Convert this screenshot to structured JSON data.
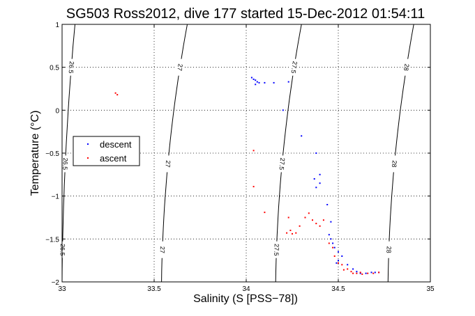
{
  "chart_data": {
    "type": "scatter",
    "title": "SG503 Ross2012, dive 177 started 15-Dec-2012 01:54:11",
    "xlabel": "Salinity (S [PSS−78])",
    "ylabel": "Temperature (°C)",
    "xlim": [
      33,
      35
    ],
    "ylim": [
      -2,
      1
    ],
    "xticks": [
      "33",
      "33.5",
      "34",
      "34.5",
      "35"
    ],
    "yticks": [
      "−2",
      "−1.5",
      "−1",
      "−0.5",
      "0",
      "0.5",
      "1"
    ],
    "grid": true,
    "legend_position": "left",
    "series": [
      {
        "name": "descent",
        "color": "#0000ff",
        "points": [
          [
            34.03,
            0.38
          ],
          [
            34.04,
            0.36
          ],
          [
            34.05,
            0.35
          ],
          [
            34.06,
            0.33
          ],
          [
            34.07,
            0.32
          ],
          [
            34.1,
            0.32
          ],
          [
            34.15,
            0.32
          ],
          [
            34.23,
            0.33
          ],
          [
            34.05,
            0.3
          ],
          [
            34.2,
            0.0
          ],
          [
            34.3,
            -0.3
          ],
          [
            34.38,
            -0.5
          ],
          [
            34.4,
            -0.75
          ],
          [
            34.37,
            -0.8
          ],
          [
            34.4,
            -0.85
          ],
          [
            34.38,
            -0.9
          ],
          [
            34.44,
            -1.1
          ],
          [
            34.46,
            -1.3
          ],
          [
            34.45,
            -1.45
          ],
          [
            34.46,
            -1.5
          ],
          [
            34.47,
            -1.55
          ],
          [
            34.48,
            -1.6
          ],
          [
            34.5,
            -1.65
          ],
          [
            34.52,
            -1.7
          ],
          [
            34.5,
            -1.75
          ],
          [
            34.49,
            -1.78
          ],
          [
            34.55,
            -1.8
          ],
          [
            34.58,
            -1.85
          ],
          [
            34.6,
            -1.88
          ],
          [
            34.62,
            -1.9
          ],
          [
            34.65,
            -1.9
          ],
          [
            34.68,
            -1.89
          ],
          [
            34.7,
            -1.89
          ],
          [
            34.72,
            -1.89
          ]
        ]
      },
      {
        "name": "ascent",
        "color": "#ff0000",
        "points": [
          [
            33.29,
            0.2
          ],
          [
            33.3,
            0.18
          ],
          [
            34.04,
            -0.47
          ],
          [
            34.04,
            -0.89
          ],
          [
            34.1,
            -1.19
          ],
          [
            34.23,
            -1.25
          ],
          [
            34.24,
            -1.4
          ],
          [
            34.22,
            -1.43
          ],
          [
            34.25,
            -1.44
          ],
          [
            34.27,
            -1.43
          ],
          [
            34.29,
            -1.35
          ],
          [
            34.32,
            -1.25
          ],
          [
            34.34,
            -1.2
          ],
          [
            34.36,
            -1.28
          ],
          [
            34.38,
            -1.32
          ],
          [
            34.4,
            -1.35
          ],
          [
            34.42,
            -1.28
          ],
          [
            34.45,
            -1.55
          ],
          [
            34.47,
            -1.6
          ],
          [
            34.48,
            -1.7
          ],
          [
            34.5,
            -1.78
          ],
          [
            34.52,
            -1.8
          ],
          [
            34.55,
            -1.85
          ],
          [
            34.57,
            -1.88
          ],
          [
            34.6,
            -1.9
          ],
          [
            34.63,
            -1.91
          ],
          [
            34.66,
            -1.9
          ],
          [
            34.69,
            -1.9
          ],
          [
            34.72,
            -1.89
          ],
          [
            34.53,
            -1.86
          ],
          [
            34.58,
            -1.9
          ],
          [
            34.62,
            -1.89
          ]
        ]
      }
    ],
    "density_contours": [
      {
        "label": "26.5",
        "s_at_tmin": 33.0,
        "s_at_tmax": 33.07
      },
      {
        "label": "27",
        "s_at_tmin": 33.54,
        "s_at_tmax": 33.68
      },
      {
        "label": "27.5",
        "s_at_tmin": 34.16,
        "s_at_tmax": 34.3
      },
      {
        "label": "28",
        "s_at_tmin": 34.77,
        "s_at_tmax": 34.91
      }
    ]
  }
}
